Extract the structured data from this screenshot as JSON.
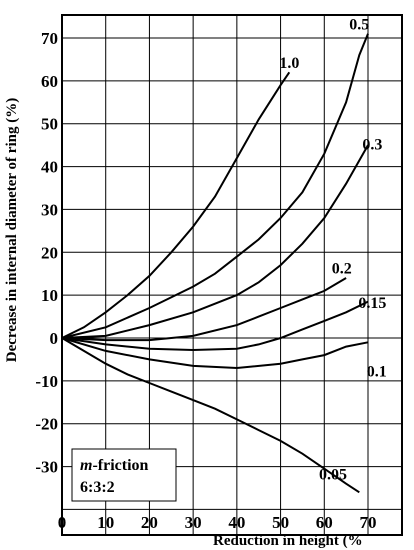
{
  "chart_data": {
    "type": "line",
    "title": "",
    "xlabel": "Reduction in height  (%",
    "ylabel": "Decrease in internal diameter of ring (%)",
    "xlim": [
      0,
      80
    ],
    "ylim": [
      -40,
      75
    ],
    "x_ticks": [
      "0",
      "10",
      "20",
      "30",
      "40",
      "50",
      "60",
      "70"
    ],
    "y_ticks": [
      "70",
      "60",
      "50",
      "40",
      "30",
      "20",
      "10",
      "0",
      "-10",
      "-20",
      "-30"
    ],
    "grid": true,
    "legend": {
      "position": "bottom-left",
      "lines": [
        "m-friction",
        "6:3:2"
      ],
      "italic_prefix": "m"
    },
    "series": [
      {
        "name": "1.0",
        "label_at": [
          52,
          63
        ],
        "points": [
          [
            0,
            0
          ],
          [
            5,
            2.5
          ],
          [
            10,
            6
          ],
          [
            15,
            10
          ],
          [
            20,
            14.5
          ],
          [
            25,
            20
          ],
          [
            30,
            26
          ],
          [
            35,
            33
          ],
          [
            40,
            42
          ],
          [
            45,
            51
          ],
          [
            50,
            59
          ],
          [
            52,
            62
          ]
        ]
      },
      {
        "name": "0.5",
        "label_at": [
          68,
          72
        ],
        "points": [
          [
            0,
            0
          ],
          [
            10,
            2.5
          ],
          [
            20,
            7
          ],
          [
            30,
            12
          ],
          [
            35,
            15
          ],
          [
            40,
            19
          ],
          [
            45,
            23
          ],
          [
            50,
            28
          ],
          [
            55,
            34
          ],
          [
            60,
            43
          ],
          [
            65,
            55
          ],
          [
            68,
            66
          ],
          [
            70,
            71
          ]
        ]
      },
      {
        "name": "0.3",
        "label_at": [
          71,
          44
        ],
        "points": [
          [
            0,
            0
          ],
          [
            10,
            0.5
          ],
          [
            20,
            3
          ],
          [
            30,
            6
          ],
          [
            40,
            10
          ],
          [
            45,
            13
          ],
          [
            50,
            17
          ],
          [
            55,
            22
          ],
          [
            60,
            28
          ],
          [
            65,
            36
          ],
          [
            70,
            45
          ]
        ]
      },
      {
        "name": "0.2",
        "label_at": [
          64,
          15
        ],
        "points": [
          [
            0,
            0
          ],
          [
            10,
            -0.5
          ],
          [
            20,
            -0.5
          ],
          [
            30,
            0.5
          ],
          [
            40,
            3
          ],
          [
            45,
            5
          ],
          [
            50,
            7
          ],
          [
            55,
            9
          ],
          [
            60,
            11
          ],
          [
            65,
            14
          ]
        ]
      },
      {
        "name": "0.15",
        "label_at": [
          71,
          7
        ],
        "points": [
          [
            0,
            0
          ],
          [
            10,
            -1.5
          ],
          [
            20,
            -2.5
          ],
          [
            30,
            -2.8
          ],
          [
            40,
            -2.5
          ],
          [
            45,
            -1.5
          ],
          [
            50,
            0
          ],
          [
            55,
            2
          ],
          [
            60,
            4
          ],
          [
            65,
            6
          ],
          [
            70,
            8.5
          ]
        ]
      },
      {
        "name": "0.1",
        "label_at": [
          72,
          -9
        ],
        "points": [
          [
            0,
            0
          ],
          [
            10,
            -3
          ],
          [
            20,
            -5
          ],
          [
            30,
            -6.5
          ],
          [
            40,
            -7
          ],
          [
            50,
            -6
          ],
          [
            55,
            -5
          ],
          [
            60,
            -4
          ],
          [
            65,
            -2
          ],
          [
            70,
            -1
          ]
        ]
      },
      {
        "name": "0.05",
        "label_at": [
          62,
          -33
        ],
        "points": [
          [
            0,
            0
          ],
          [
            5,
            -3
          ],
          [
            10,
            -6
          ],
          [
            15,
            -8.5
          ],
          [
            20,
            -10.5
          ],
          [
            25,
            -12.5
          ],
          [
            30,
            -14.5
          ],
          [
            35,
            -16.5
          ],
          [
            40,
            -19
          ],
          [
            45,
            -21.5
          ],
          [
            50,
            -24
          ],
          [
            55,
            -27
          ],
          [
            60,
            -30.5
          ],
          [
            65,
            -34
          ],
          [
            68,
            -36
          ]
        ]
      }
    ]
  }
}
